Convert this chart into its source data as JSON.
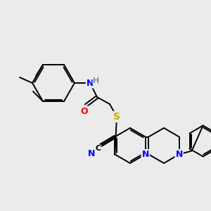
{
  "bg_color": "#ebebeb",
  "bond_color": "#000000",
  "atom_colors": {
    "N": "#0000ff",
    "O": "#ff0000",
    "S": "#ccaa00",
    "H": "#7090a0"
  },
  "figsize": [
    3.0,
    3.0
  ],
  "dpi": 100,
  "lw": 1.4
}
